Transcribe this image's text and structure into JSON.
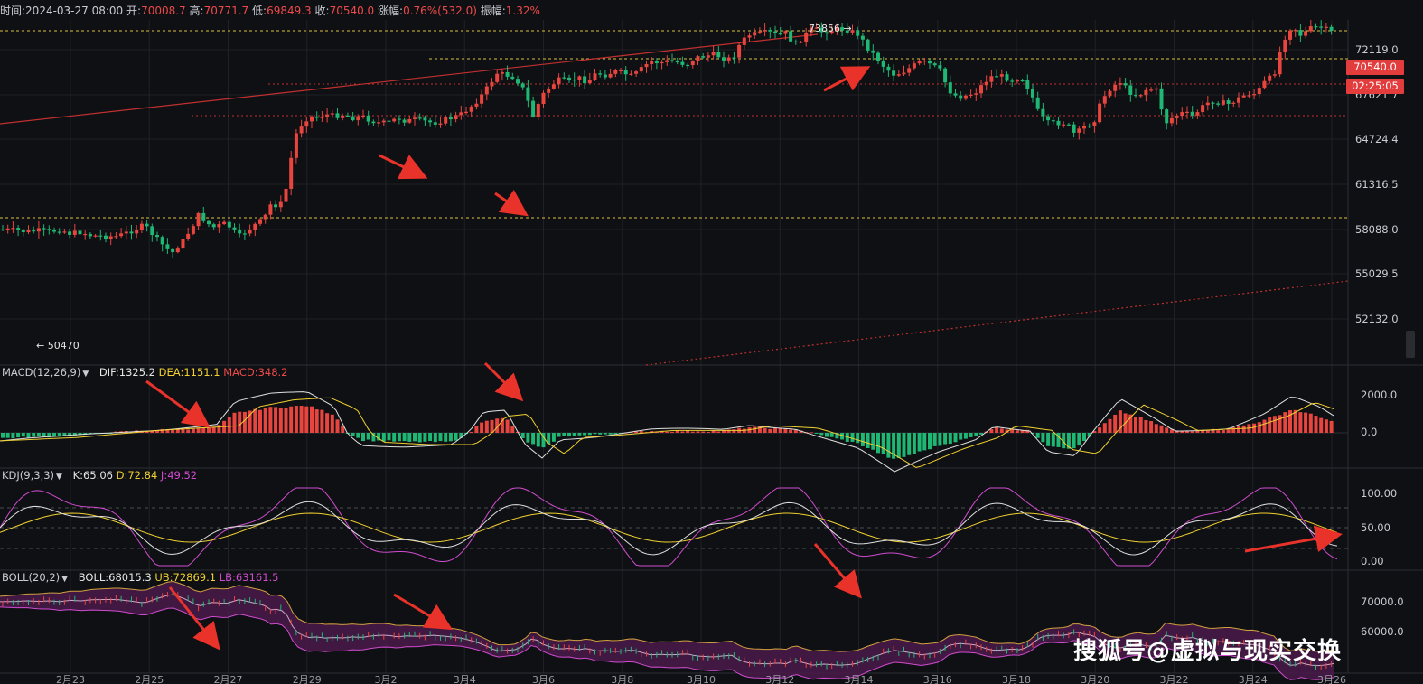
{
  "infobar": {
    "time_label": "时间:",
    "time": "2024-03-27 08:00",
    "open_label": "开:",
    "open": "70008.7",
    "high_label": "高:",
    "high": "70771.7",
    "low_label": "低:",
    "low": "69849.3",
    "close_label": "收:",
    "close": "70540.0",
    "change_label": "涨幅:",
    "change": "0.76%(532.0)",
    "amp_label": "振幅:",
    "amp": "1.32%"
  },
  "price_tags": {
    "last": "70540.0",
    "countdown": "02:25:05"
  },
  "annotations": {
    "high_marker": "73856",
    "low_marker": "50470"
  },
  "indicators": {
    "macd": {
      "name": "MACD(12,26,9)",
      "dif": "DIF:1325.2",
      "dea": "DEA:1151.1",
      "macd": "MACD:348.2"
    },
    "kdj": {
      "name": "KDJ(9,3,3)",
      "k": "K:65.06",
      "d": "D:72.84",
      "j": "J:49.52"
    },
    "boll": {
      "name": "BOLL(20,2)",
      "mid": "BOLL:68015.3",
      "ub": "UB:72869.1",
      "lb": "LB:63161.5"
    }
  },
  "watermark": "搜狐号@虚拟与现实交换",
  "colors": {
    "up": "#e9453f",
    "down": "#1fb774",
    "bg": "#0f1013",
    "grid": "#1f2126",
    "dif": "#e0e0e0",
    "dea": "#f0d030",
    "j": "#cf4ccf",
    "trend": "#c03030"
  },
  "chart_data": [
    {
      "type": "candlestick",
      "title": "",
      "x_tick_labels": [
        "2月23",
        "2月25",
        "2月27",
        "2月29",
        "3月2",
        "3月4",
        "3月6",
        "3月8",
        "3月10",
        "3月12",
        "3月14",
        "3月16",
        "3月18",
        "3月20",
        "3月22",
        "3月24",
        "3月26"
      ],
      "y_tick_labels": [
        "72119.0",
        "67621.7",
        "64724.4",
        "61316.5",
        "58088.0",
        "55029.5",
        "52132.0"
      ],
      "ylim": [
        49500,
        74800
      ],
      "trend_points": [
        [
          0,
          138
        ],
        [
          18,
          137
        ],
        [
          30,
          135
        ],
        [
          45,
          137
        ],
        [
          55,
          135
        ],
        [
          66,
          138
        ],
        [
          78,
          133
        ],
        [
          90,
          135
        ],
        [
          100,
          131
        ],
        [
          115,
          130
        ],
        [
          130,
          130
        ],
        [
          145,
          136
        ],
        [
          160,
          143
        ],
        [
          175,
          125
        ],
        [
          190,
          110
        ],
        [
          205,
          128
        ],
        [
          220,
          155
        ],
        [
          235,
          140
        ],
        [
          250,
          145
        ],
        [
          265,
          130
        ],
        [
          280,
          142
        ],
        [
          292,
          150
        ],
        [
          300,
          168
        ],
        [
          310,
          165
        ],
        [
          318,
          190
        ],
        [
          322,
          220
        ],
        [
          328,
          250
        ],
        [
          335,
          262
        ],
        [
          342,
          270
        ],
        [
          350,
          268
        ],
        [
          360,
          272
        ],
        [
          370,
          270
        ],
        [
          380,
          272
        ],
        [
          390,
          268
        ],
        [
          400,
          270
        ],
        [
          410,
          265
        ],
        [
          420,
          262
        ],
        [
          430,
          262
        ],
        [
          440,
          268
        ],
        [
          450,
          264
        ],
        [
          460,
          266
        ],
        [
          470,
          264
        ],
        [
          480,
          262
        ],
        [
          490,
          265
        ],
        [
          500,
          268
        ],
        [
          510,
          272
        ],
        [
          520,
          280
        ],
        [
          530,
          290
        ],
        [
          540,
          304
        ],
        [
          550,
          320
        ],
        [
          560,
          318
        ],
        [
          570,
          315
        ],
        [
          580,
          300
        ],
        [
          590,
          270
        ],
        [
          600,
          294
        ],
        [
          610,
          306
        ],
        [
          620,
          313
        ],
        [
          630,
          310
        ],
        [
          640,
          315
        ],
        [
          650,
          310
        ],
        [
          660,
          320
        ],
        [
          670,
          318
        ],
        [
          680,
          322
        ],
        [
          690,
          320
        ],
        [
          700,
          316
        ],
        [
          710,
          325
        ],
        [
          720,
          334
        ],
        [
          730,
          332
        ],
        [
          740,
          334
        ],
        [
          750,
          333
        ],
        [
          760,
          330
        ],
        [
          770,
          338
        ],
        [
          780,
          340
        ],
        [
          790,
          342
        ],
        [
          800,
          338
        ],
        [
          810,
          336
        ],
        [
          820,
          356
        ],
        [
          830,
          365
        ],
        [
          840,
          366
        ],
        [
          850,
          368
        ],
        [
          860,
          364
        ],
        [
          870,
          367
        ],
        [
          880,
          352
        ],
        [
          890,
          364
        ],
        [
          900,
          372
        ],
        [
          910,
          368
        ],
        [
          920,
          370
        ],
        [
          930,
          372
        ],
        [
          940,
          370
        ],
        [
          950,
          365
        ],
        [
          960,
          350
        ],
        [
          970,
          338
        ],
        [
          980,
          326
        ],
        [
          990,
          318
        ],
        [
          1000,
          322
        ],
        [
          1010,
          328
        ],
        [
          1020,
          334
        ],
        [
          1030,
          330
        ],
        [
          1040,
          324
        ],
        [
          1050,
          300
        ],
        [
          1060,
          292
        ],
        [
          1070,
          294
        ],
        [
          1080,
          298
        ],
        [
          1090,
          310
        ],
        [
          1100,
          318
        ],
        [
          1110,
          316
        ],
        [
          1120,
          312
        ],
        [
          1130,
          316
        ],
        [
          1140,
          300
        ],
        [
          1150,
          272
        ],
        [
          1160,
          262
        ],
        [
          1170,
          262
        ],
        [
          1180,
          262
        ],
        [
          1190,
          248
        ],
        [
          1200,
          258
        ],
        [
          1210,
          262
        ],
        [
          1220,
          290
        ],
        [
          1230,
          304
        ],
        [
          1240,
          310
        ],
        [
          1250,
          298
        ],
        [
          1260,
          294
        ],
        [
          1270,
          302
        ],
        [
          1280,
          300
        ],
        [
          1290,
          262
        ],
        [
          1300,
          270
        ],
        [
          1310,
          274
        ],
        [
          1320,
          270
        ],
        [
          1330,
          280
        ],
        [
          1340,
          288
        ],
        [
          1350,
          286
        ],
        [
          1360,
          284
        ],
        [
          1370,
          290
        ],
        [
          1380,
          296
        ],
        [
          1390,
          296
        ],
        [
          1400,
          310
        ],
        [
          1410,
          318
        ],
        [
          1420,
          358
        ],
        [
          1430,
          376
        ],
        [
          1440,
          364
        ],
        [
          1450,
          372
        ],
        [
          1460,
          374
        ],
        [
          1470,
          370
        ],
        [
          1480,
          364
        ]
      ]
    },
    {
      "type": "line",
      "title": "MACD(12,26,9)",
      "y_tick_labels": [
        "2000.0",
        "0.0"
      ],
      "series": [
        {
          "name": "DIF"
        },
        {
          "name": "DEA"
        },
        {
          "name": "MACD"
        }
      ]
    },
    {
      "type": "line",
      "title": "KDJ(9,3,3)",
      "y_tick_labels": [
        "100.00",
        "50.00",
        "0.00"
      ],
      "series": [
        {
          "name": "K"
        },
        {
          "name": "D"
        },
        {
          "name": "J"
        }
      ]
    },
    {
      "type": "area",
      "title": "BOLL(20,2)",
      "y_tick_labels": [
        "70000.0",
        "60000.0"
      ],
      "series": [
        {
          "name": "BOLL"
        },
        {
          "name": "UB"
        },
        {
          "name": "LB"
        }
      ]
    }
  ]
}
